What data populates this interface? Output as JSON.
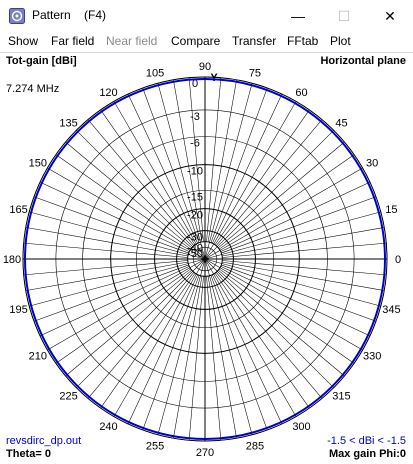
{
  "window": {
    "title": "Pattern    (F4)",
    "minimize": "—",
    "maximize": "☐",
    "close": "✕"
  },
  "menu": {
    "items": [
      {
        "label": "Show",
        "enabled": true
      },
      {
        "label": "Far field",
        "enabled": true
      },
      {
        "label": "Near field",
        "enabled": false
      },
      {
        "label": "Compare",
        "enabled": true
      },
      {
        "label": "Transfer",
        "enabled": true
      },
      {
        "label": "FFtab",
        "enabled": true
      },
      {
        "label": "Plot",
        "enabled": true
      }
    ]
  },
  "plot": {
    "gain_label": "Tot-gain [dBi]",
    "plane_label": "Horizontal plane",
    "frequency": "7.274 MHz",
    "file_name": "revsdirc_dp.out",
    "gain_range": "-1.5 < dBi < -1.5",
    "theta": "Theta= 0",
    "max_gain": "Max gain Phi:0",
    "axis_letter": "Y",
    "colors": {
      "pattern": "#0000cc",
      "grid": "#000000",
      "text": "#000000",
      "info_text": "#0000cc"
    },
    "angle_labels": [
      "0",
      "15",
      "30",
      "45",
      "60",
      "75",
      "90",
      "105",
      "120",
      "135",
      "150",
      "165",
      "180",
      "195",
      "210",
      "225",
      "240",
      "255",
      "270",
      "285",
      "300",
      "315",
      "330",
      "345"
    ],
    "db_labels": [
      "0",
      "-3",
      "-6",
      "-10",
      "-15",
      "-20",
      "-30",
      "-40",
      "-50"
    ],
    "db_values": [
      0,
      -3,
      -6,
      -10,
      -15,
      -20,
      -30,
      -40,
      -50
    ],
    "pattern_gain_dbi": -1.5,
    "pattern_relative_db": 0
  }
}
